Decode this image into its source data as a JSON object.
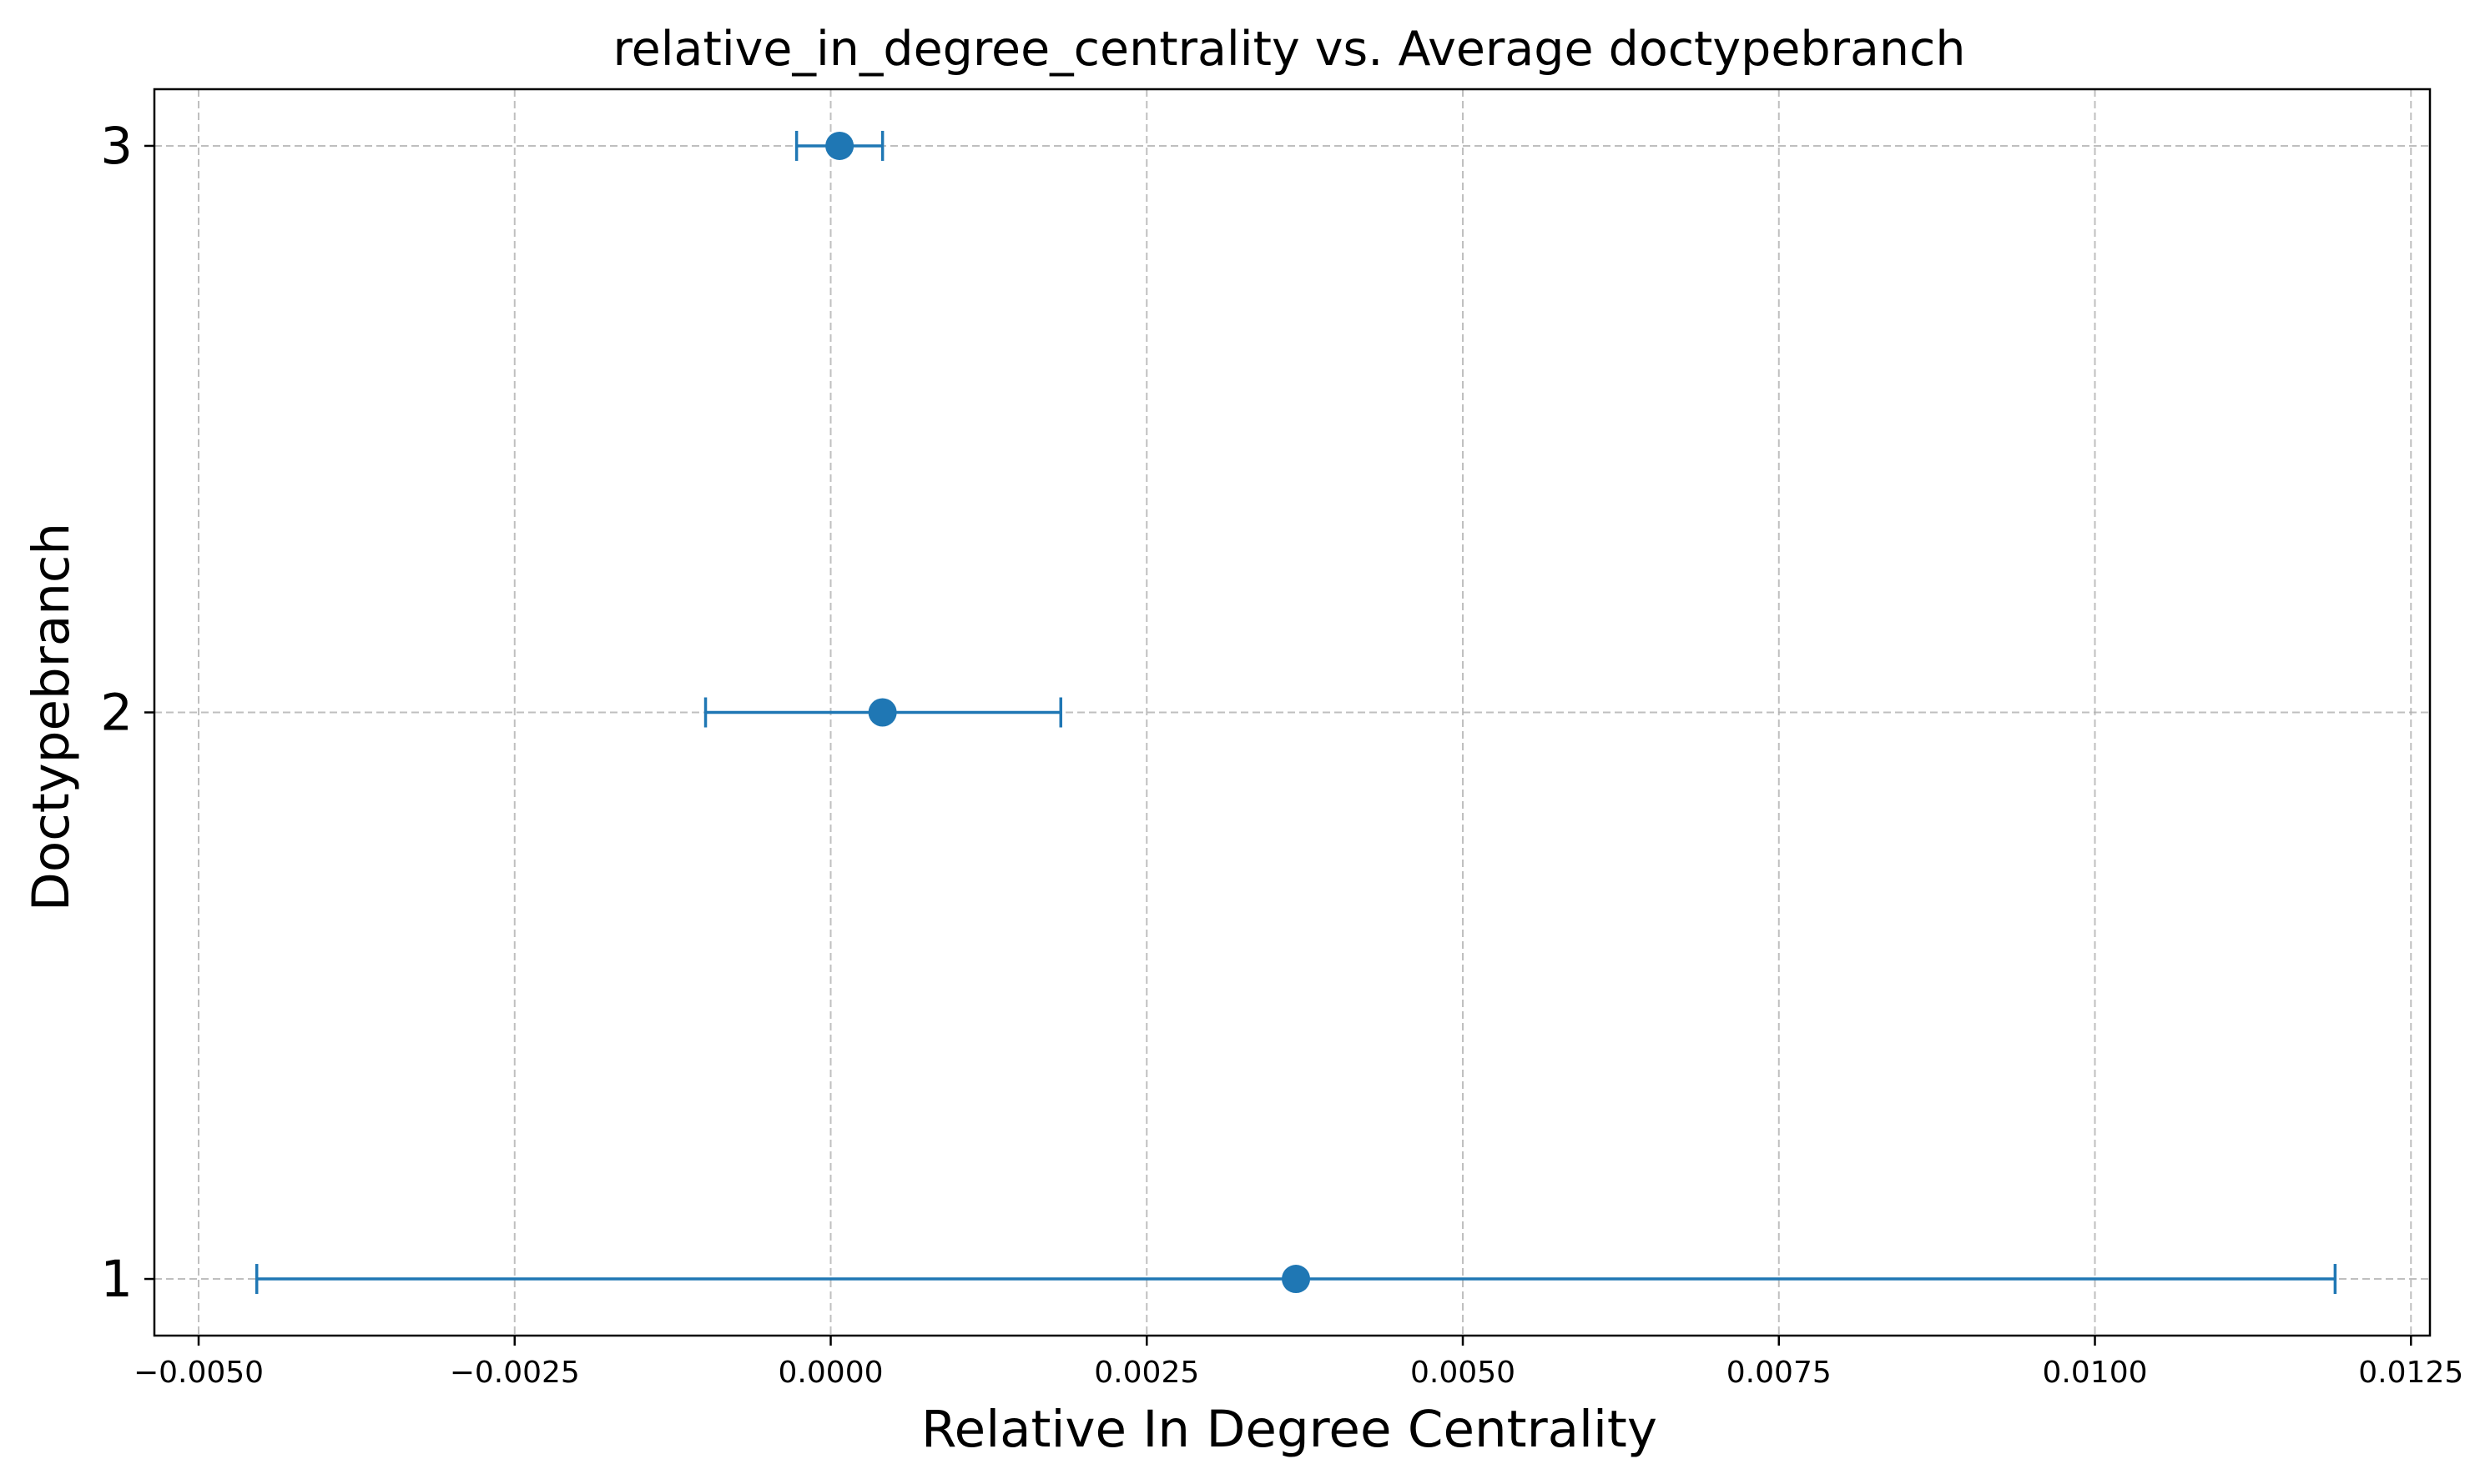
{
  "chart_data": {
    "type": "scatter",
    "title": "relative_in_degree_centrality vs. Average doctypebranch",
    "xlabel": "Relative In Degree Centrality",
    "ylabel": "Doctypebranch",
    "xlim": [
      -0.00535,
      0.01265
    ],
    "ylim": [
      0.9,
      3.1
    ],
    "xticks": [
      -0.005,
      -0.0025,
      0.0,
      0.0025,
      0.005,
      0.0075,
      0.01,
      0.0125
    ],
    "xtick_labels": [
      "−0.0050",
      "−0.0025",
      "0.0000",
      "0.0025",
      "0.0050",
      "0.0075",
      "0.0100",
      "0.0125"
    ],
    "yticks": [
      1,
      2,
      3
    ],
    "ytick_labels": [
      "1",
      "2",
      "3"
    ],
    "grid": true,
    "color": "#1f77b4",
    "points": [
      {
        "y": 1,
        "x": 0.00368,
        "xerr_low": -0.00454,
        "xerr_high": 0.0119
      },
      {
        "y": 2,
        "x": 0.00041,
        "xerr_low": -0.00099,
        "xerr_high": 0.00182
      },
      {
        "y": 3,
        "x": 7e-05,
        "xerr_low": -0.00027,
        "xerr_high": 0.00041
      }
    ]
  }
}
